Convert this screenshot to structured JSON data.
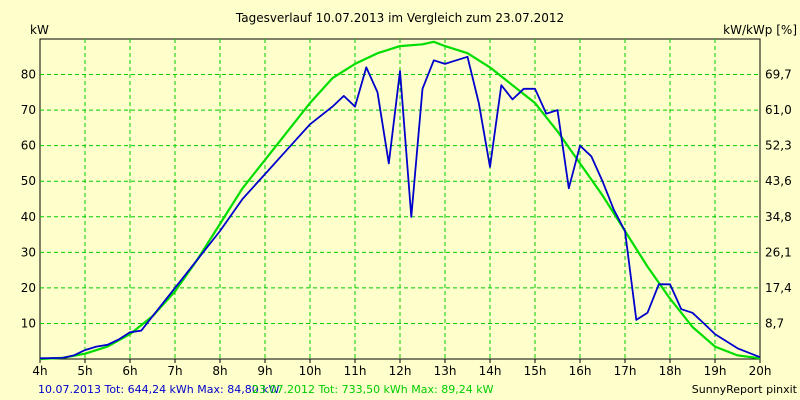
{
  "chart_data": {
    "type": "line",
    "title": "Tagesverlauf 10.07.2013 im Vergleich zum 23.07.2012",
    "ylabel_left": "kW",
    "ylabel_right": "kW/kWp [%]",
    "x_ticks": [
      "4h",
      "5h",
      "6h",
      "7h",
      "8h",
      "9h",
      "10h",
      "11h",
      "12h",
      "13h",
      "14h",
      "15h",
      "16h",
      "17h",
      "18h",
      "19h",
      "20h"
    ],
    "y_ticks_left": [
      "10",
      "20",
      "30",
      "40",
      "50",
      "60",
      "70",
      "80"
    ],
    "y_ticks_right": [
      "8,7",
      "17,4",
      "26,1",
      "34,8",
      "43,6",
      "52,3",
      "61,0",
      "69,7"
    ],
    "xlim": [
      4,
      20
    ],
    "ylim": [
      0,
      90
    ],
    "grid": true,
    "series": [
      {
        "name": "10.07.2013",
        "color": "#0000cc",
        "x": [
          4.0,
          4.5,
          4.75,
          5.0,
          5.25,
          5.5,
          5.75,
          6.0,
          6.25,
          6.5,
          6.75,
          7.0,
          7.5,
          8.0,
          8.5,
          9.0,
          9.5,
          10.0,
          10.5,
          10.75,
          11.0,
          11.25,
          11.5,
          11.75,
          12.0,
          12.25,
          12.5,
          12.75,
          13.0,
          13.25,
          13.5,
          13.75,
          14.0,
          14.25,
          14.5,
          14.75,
          15.0,
          15.25,
          15.5,
          15.75,
          16.0,
          16.25,
          16.5,
          16.75,
          17.0,
          17.25,
          17.5,
          17.75,
          18.0,
          18.25,
          18.5,
          18.75,
          19.0,
          19.5,
          20.0
        ],
        "y": [
          0.2,
          0.3,
          1.0,
          2.5,
          3.5,
          4.0,
          5.5,
          7.5,
          8.0,
          12.0,
          16.0,
          20.0,
          28.0,
          36.0,
          45.0,
          52.0,
          59.0,
          66.0,
          71.0,
          74.0,
          71.0,
          82.0,
          75.0,
          55.0,
          81.0,
          40.0,
          76.0,
          84.0,
          83.0,
          84.0,
          85.0,
          72.0,
          54.0,
          77.0,
          73.0,
          76.0,
          76.0,
          69.0,
          70.0,
          48.0,
          60.0,
          57.0,
          50.0,
          42.0,
          36.0,
          11.0,
          13.0,
          21.0,
          21.0,
          14.0,
          13.0,
          10.0,
          7.0,
          3.0,
          0.5
        ]
      },
      {
        "name": "23.07.2012",
        "color": "#00dd00",
        "x": [
          4.0,
          4.5,
          5.0,
          5.5,
          6.0,
          6.5,
          7.0,
          7.5,
          8.0,
          8.5,
          9.0,
          9.5,
          10.0,
          10.5,
          11.0,
          11.5,
          12.0,
          12.5,
          12.75,
          13.0,
          13.5,
          14.0,
          14.5,
          15.0,
          15.5,
          16.0,
          16.5,
          17.0,
          17.5,
          18.0,
          18.5,
          19.0,
          19.5,
          20.0
        ],
        "y": [
          0.0,
          0.3,
          1.5,
          3.5,
          7.0,
          12.0,
          19.0,
          28.0,
          38.0,
          48.0,
          56.0,
          64.0,
          72.0,
          79.0,
          83.0,
          86.0,
          88.0,
          88.5,
          89.2,
          88.0,
          86.0,
          82.0,
          77.0,
          72.0,
          64.0,
          55.0,
          46.0,
          36.0,
          26.0,
          17.0,
          9.0,
          3.5,
          1.0,
          0.2
        ]
      }
    ],
    "footer_left_2013": "10.07.2013 Tot: 644,24 kWh Max: 84,80 kW",
    "footer_left_2012": "23.07.2012 Tot: 733,50 kWh Max: 89,24 kW",
    "footer_right": "SunnyReport pinxit",
    "colors": {
      "background": "#ffffcc",
      "grid": "#00cc00",
      "series_2013": "#0000cc",
      "series_2012": "#00dd00"
    }
  }
}
